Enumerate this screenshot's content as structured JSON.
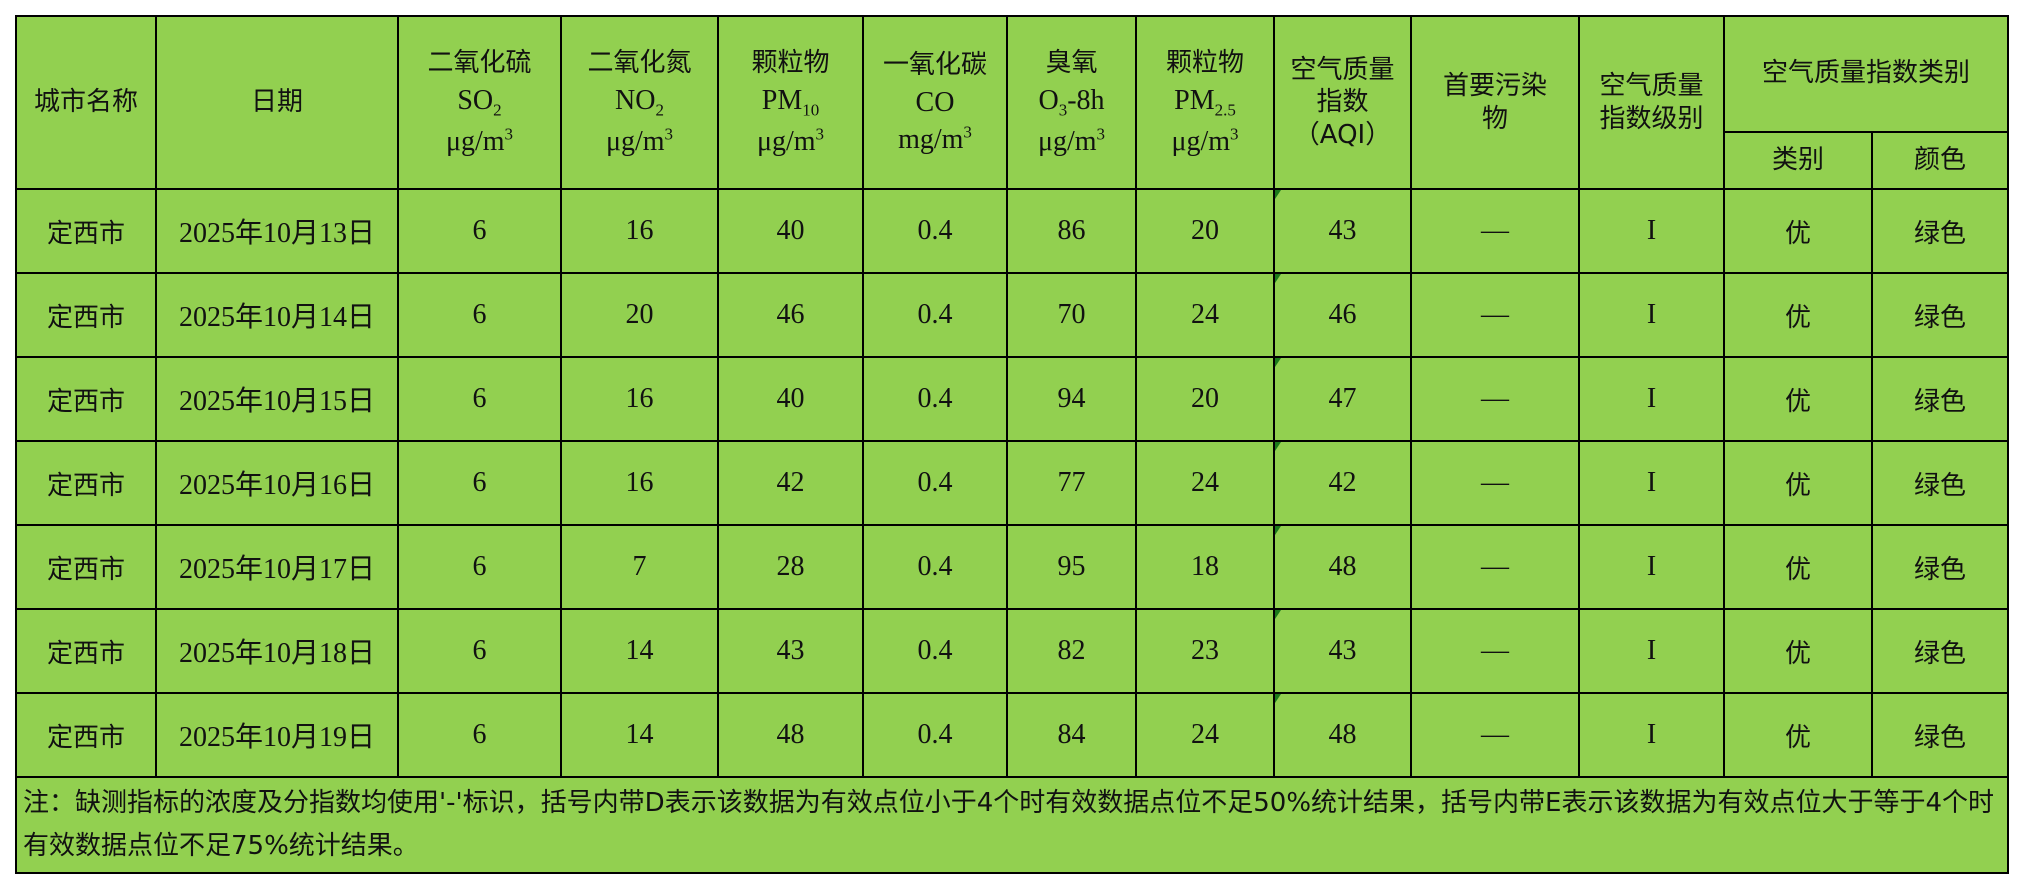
{
  "headers": {
    "city": "城市名称",
    "date": "日期",
    "so2": {
      "name": "二氧化硫",
      "formula": "SO",
      "sub": "2",
      "unit": "μg/m",
      "unit_sup": "3"
    },
    "no2": {
      "name": "二氧化氮",
      "formula": "NO",
      "sub": "2",
      "unit": "μg/m",
      "unit_sup": "3"
    },
    "pm10": {
      "name": "颗粒物",
      "formula": "PM",
      "sub": "10",
      "unit": "μg/m",
      "unit_sup": "3"
    },
    "co": {
      "name": "一氧化碳",
      "formula": "CO",
      "sub": "",
      "unit": "mg/m",
      "unit_sup": "3"
    },
    "o3": {
      "name": "臭氧",
      "formula": "O",
      "sub": "3",
      "suffix": "-8h",
      "unit": "μg/m",
      "unit_sup": "3"
    },
    "pm25": {
      "name": "颗粒物",
      "formula": "PM",
      "sub": "2.5",
      "unit": "μg/m",
      "unit_sup": "3"
    },
    "aqi": {
      "line1": "空气质量",
      "line2": "指数",
      "line3": "（AQI）"
    },
    "primary": {
      "line1": "首要污染",
      "line2": "物"
    },
    "level": {
      "line1": "空气质量",
      "line2": "指数级别"
    },
    "category_group": "空气质量指数类别",
    "category": "类别",
    "color": "颜色"
  },
  "rows": [
    {
      "city": "定西市",
      "date": "2025年10月13日",
      "so2": "6",
      "no2": "16",
      "pm10": "40",
      "co": "0.4",
      "o3": "86",
      "pm25": "20",
      "aqi": "43",
      "primary": "—",
      "level": "I",
      "category": "优",
      "color": "绿色"
    },
    {
      "city": "定西市",
      "date": "2025年10月14日",
      "so2": "6",
      "no2": "20",
      "pm10": "46",
      "co": "0.4",
      "o3": "70",
      "pm25": "24",
      "aqi": "46",
      "primary": "—",
      "level": "I",
      "category": "优",
      "color": "绿色"
    },
    {
      "city": "定西市",
      "date": "2025年10月15日",
      "so2": "6",
      "no2": "16",
      "pm10": "40",
      "co": "0.4",
      "o3": "94",
      "pm25": "20",
      "aqi": "47",
      "primary": "—",
      "level": "I",
      "category": "优",
      "color": "绿色"
    },
    {
      "city": "定西市",
      "date": "2025年10月16日",
      "so2": "6",
      "no2": "16",
      "pm10": "42",
      "co": "0.4",
      "o3": "77",
      "pm25": "24",
      "aqi": "42",
      "primary": "—",
      "level": "I",
      "category": "优",
      "color": "绿色"
    },
    {
      "city": "定西市",
      "date": "2025年10月17日",
      "so2": "6",
      "no2": "7",
      "pm10": "28",
      "co": "0.4",
      "o3": "95",
      "pm25": "18",
      "aqi": "48",
      "primary": "—",
      "level": "I",
      "category": "优",
      "color": "绿色"
    },
    {
      "city": "定西市",
      "date": "2025年10月18日",
      "so2": "6",
      "no2": "14",
      "pm10": "43",
      "co": "0.4",
      "o3": "82",
      "pm25": "23",
      "aqi": "43",
      "primary": "—",
      "level": "I",
      "category": "优",
      "color": "绿色"
    },
    {
      "city": "定西市",
      "date": "2025年10月19日",
      "so2": "6",
      "no2": "14",
      "pm10": "48",
      "co": "0.4",
      "o3": "84",
      "pm25": "24",
      "aqi": "48",
      "primary": "—",
      "level": "I",
      "category": "优",
      "color": "绿色"
    }
  ],
  "note": "注：缺测指标的浓度及分指数均使用'-'标识，括号内带D表示该数据为有效点位小于4个时有效数据点位不足50%统计结果，括号内带E表示该数据为有效点位大于等于4个时有效数据点位不足75%统计结果。",
  "colors": {
    "cell_background": "#92d050",
    "border": "#000000",
    "corner_marker": "#1a7a1a"
  }
}
